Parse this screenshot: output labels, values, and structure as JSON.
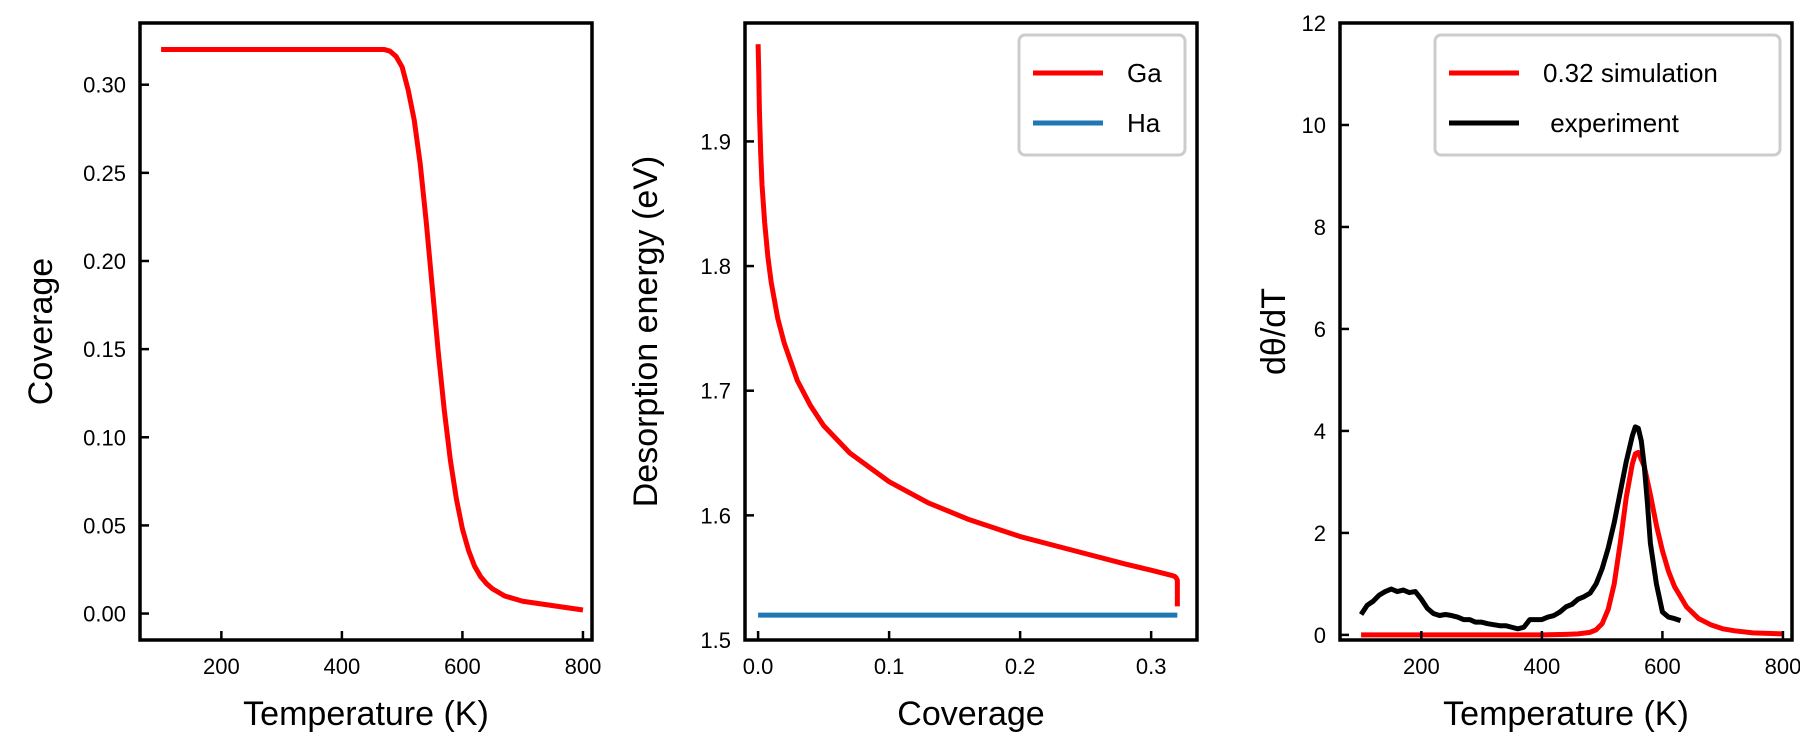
{
  "chart_data": [
    {
      "type": "line",
      "xlabel": "Temperature (K)",
      "ylabel": "Coverage",
      "xlim": [
        65,
        815
      ],
      "ylim": [
        -0.015,
        0.335
      ],
      "xticks": [
        200,
        400,
        600,
        800
      ],
      "yticks": [
        0.0,
        0.05,
        0.1,
        0.15,
        0.2,
        0.25,
        0.3
      ],
      "ytick_labels": [
        "0.00",
        "0.05",
        "0.10",
        "0.15",
        "0.20",
        "0.25",
        "0.30"
      ],
      "xtick_labels": [
        "200",
        "400",
        "600",
        "800"
      ],
      "grid": false,
      "legend": null,
      "series": [
        {
          "color": "#ff0000",
          "x": [
            100,
            200,
            300,
            400,
            450,
            470,
            480,
            490,
            500,
            510,
            520,
            530,
            540,
            550,
            560,
            570,
            580,
            590,
            600,
            610,
            620,
            630,
            640,
            650,
            660,
            670,
            680,
            700,
            720,
            740,
            760,
            780,
            800
          ],
          "y": [
            0.32,
            0.32,
            0.32,
            0.32,
            0.32,
            0.32,
            0.319,
            0.316,
            0.31,
            0.297,
            0.28,
            0.255,
            0.222,
            0.185,
            0.148,
            0.115,
            0.087,
            0.065,
            0.048,
            0.036,
            0.027,
            0.021,
            0.017,
            0.014,
            0.012,
            0.01,
            0.009,
            0.007,
            0.006,
            0.005,
            0.004,
            0.003,
            0.002
          ]
        }
      ]
    },
    {
      "type": "line",
      "xlabel": "Coverage",
      "ylabel": "Desorption energy (eV)",
      "xlim": [
        -0.01,
        0.335
      ],
      "ylim": [
        1.5,
        1.995
      ],
      "xticks": [
        0.0,
        0.1,
        0.2,
        0.3
      ],
      "xtick_labels": [
        "0.0",
        "0.1",
        "0.2",
        "0.3"
      ],
      "yticks": [
        1.5,
        1.6,
        1.7,
        1.8,
        1.9
      ],
      "ytick_labels": [
        "1.5",
        "1.6",
        "1.7",
        "1.8",
        "1.9"
      ],
      "grid": false,
      "legend": "top-right",
      "series": [
        {
          "name": "Ga",
          "color": "#ff0000",
          "x": [
            0.0,
            0.0005,
            0.001,
            0.002,
            0.003,
            0.005,
            0.0075,
            0.01,
            0.015,
            0.02,
            0.03,
            0.04,
            0.05,
            0.07,
            0.1,
            0.13,
            0.16,
            0.2,
            0.24,
            0.28,
            0.3,
            0.315,
            0.318,
            0.319,
            0.32,
            0.32
          ],
          "y": [
            1.978,
            1.955,
            1.925,
            1.89,
            1.865,
            1.835,
            1.807,
            1.787,
            1.758,
            1.738,
            1.708,
            1.688,
            1.672,
            1.65,
            1.627,
            1.61,
            1.597,
            1.583,
            1.572,
            1.561,
            1.556,
            1.552,
            1.551,
            1.55,
            1.548,
            1.527
          ]
        },
        {
          "name": "Ha",
          "color": "#1f77b4",
          "x": [
            0.0,
            0.32
          ],
          "y": [
            1.52,
            1.52
          ]
        }
      ]
    },
    {
      "type": "line",
      "xlabel": "Temperature (K)",
      "ylabel": "dθ/dT",
      "xlim": [
        65,
        815
      ],
      "ylim": [
        -0.1,
        12.0
      ],
      "xticks": [
        200,
        400,
        600,
        800
      ],
      "xtick_labels": [
        "200",
        "400",
        "600",
        "800"
      ],
      "yticks": [
        0,
        2,
        4,
        6,
        8,
        10,
        12
      ],
      "ytick_labels": [
        "0",
        "2",
        "4",
        "6",
        "8",
        "10",
        "12"
      ],
      "grid": false,
      "legend": "top-right",
      "series": [
        {
          "name": "0.32 simulation",
          "color": "#ff0000",
          "x": [
            100,
            200,
            300,
            400,
            440,
            460,
            480,
            490,
            500,
            510,
            520,
            530,
            540,
            550,
            555,
            560,
            570,
            580,
            590,
            600,
            610,
            620,
            640,
            660,
            680,
            700,
            720,
            750,
            800
          ],
          "y": [
            0.0,
            0.0,
            0.0,
            0.0,
            0.01,
            0.02,
            0.05,
            0.1,
            0.22,
            0.5,
            1.0,
            1.8,
            2.7,
            3.35,
            3.55,
            3.58,
            3.3,
            2.75,
            2.15,
            1.65,
            1.25,
            0.95,
            0.55,
            0.32,
            0.2,
            0.12,
            0.08,
            0.04,
            0.02
          ]
        },
        {
          "name": " experiment",
          "color": "#000000",
          "x": [
            100,
            110,
            120,
            130,
            140,
            150,
            160,
            170,
            180,
            190,
            200,
            210,
            220,
            230,
            240,
            250,
            260,
            270,
            280,
            290,
            300,
            310,
            320,
            330,
            340,
            350,
            360,
            370,
            380,
            390,
            400,
            410,
            420,
            430,
            440,
            450,
            460,
            470,
            480,
            490,
            500,
            510,
            520,
            530,
            540,
            550,
            555,
            560,
            565,
            570,
            575,
            580,
            590,
            600,
            610,
            620,
            630
          ],
          "y": [
            0.4,
            0.58,
            0.66,
            0.78,
            0.85,
            0.9,
            0.85,
            0.88,
            0.83,
            0.85,
            0.7,
            0.52,
            0.42,
            0.38,
            0.4,
            0.38,
            0.35,
            0.3,
            0.3,
            0.25,
            0.25,
            0.22,
            0.2,
            0.18,
            0.18,
            0.15,
            0.12,
            0.15,
            0.3,
            0.3,
            0.3,
            0.35,
            0.38,
            0.45,
            0.55,
            0.6,
            0.7,
            0.75,
            0.82,
            1.0,
            1.3,
            1.7,
            2.2,
            2.8,
            3.4,
            3.9,
            4.08,
            4.05,
            3.8,
            3.3,
            2.6,
            1.8,
            1.0,
            0.45,
            0.35,
            0.32,
            0.28
          ]
        }
      ]
    }
  ]
}
